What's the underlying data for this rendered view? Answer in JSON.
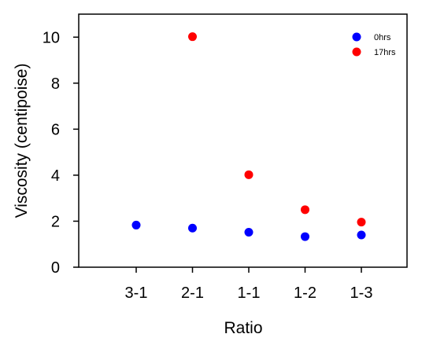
{
  "chart_data": {
    "type": "scatter",
    "title": "",
    "xlabel": "Ratio",
    "ylabel": "Viscosity (centipoise)",
    "categories": [
      "3-1",
      "2-1",
      "1-1",
      "1-2",
      "1-3"
    ],
    "ylim": [
      0,
      11
    ],
    "yticks": [
      0,
      2,
      4,
      6,
      8,
      10
    ],
    "grid": false,
    "legend_position": "top-right",
    "series": [
      {
        "name": "0hrs",
        "color": "#0000ff",
        "values": [
          1.83,
          1.7,
          1.52,
          1.33,
          1.4
        ]
      },
      {
        "name": "17hrs",
        "color": "#ff0000",
        "values": [
          null,
          10.02,
          4.02,
          2.5,
          1.96
        ]
      }
    ]
  }
}
